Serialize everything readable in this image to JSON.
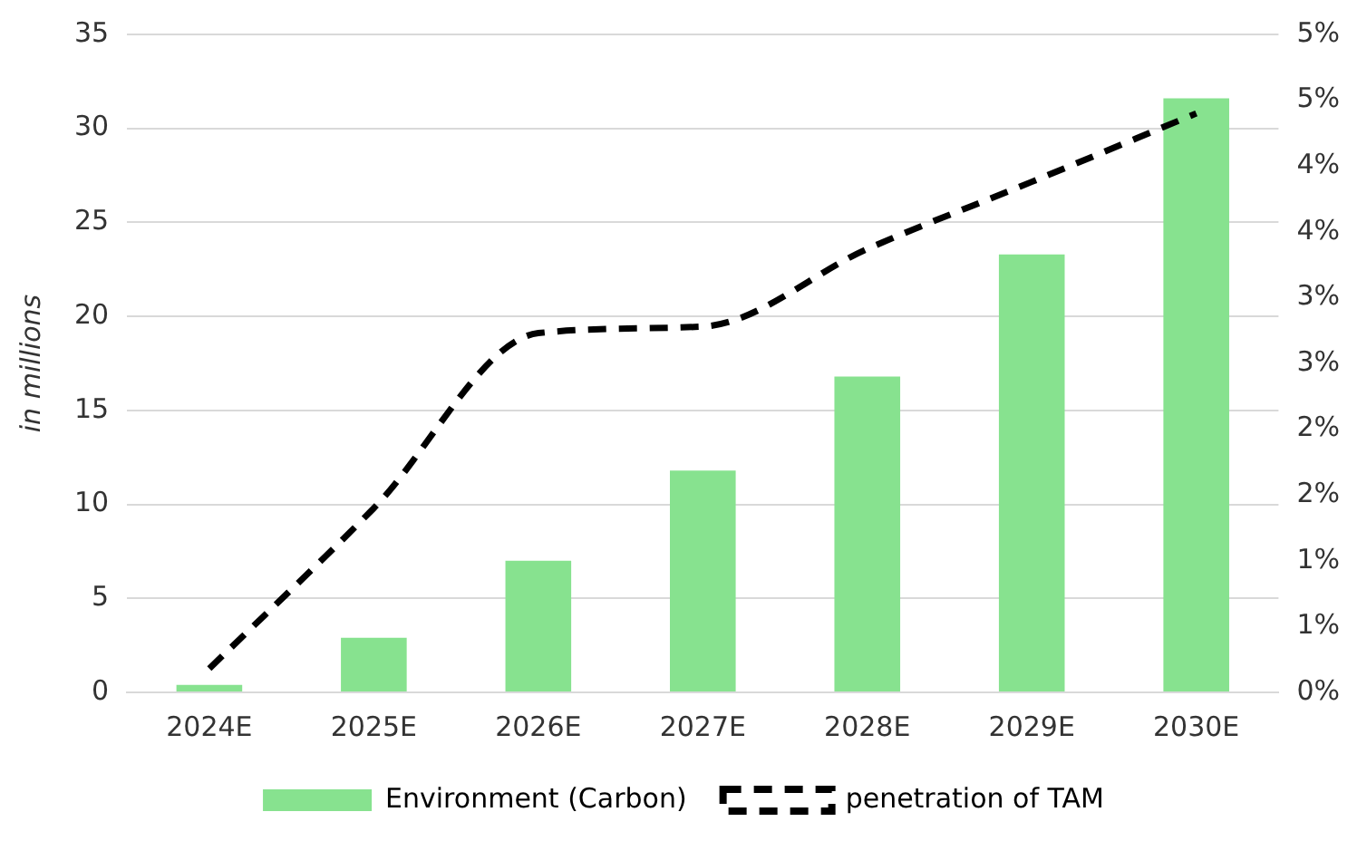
{
  "chart_data": {
    "type": "bar",
    "ylabel": "in millions",
    "categories": [
      "2024E",
      "2025E",
      "2026E",
      "2027E",
      "2028E",
      "2029E",
      "2030E"
    ],
    "series": [
      {
        "name": "Environment (Carbon)",
        "color": "#87e28f",
        "values": [
          0.4,
          2.9,
          7.0,
          11.8,
          16.8,
          23.3,
          31.6
        ]
      },
      {
        "name": "penetration of TAM",
        "type": "line",
        "axis": "y2",
        "color": "#000000",
        "line_style": "dashed",
        "marker": "none",
        "values": [
          0.18,
          1.4,
          2.73,
          2.78,
          3.37,
          3.88,
          4.4
        ]
      }
    ],
    "ylim": [
      0,
      35
    ],
    "yticks": [
      0,
      5,
      10,
      15,
      20,
      25,
      30,
      35
    ],
    "y2lim": [
      0,
      5
    ],
    "y2ticks": [
      {
        "value": 0,
        "label": "0%"
      },
      {
        "value": 0.5,
        "label": "1%"
      },
      {
        "value": 1,
        "label": "1%"
      },
      {
        "value": 1.5,
        "label": "2%"
      },
      {
        "value": 2,
        "label": "2%"
      },
      {
        "value": 2.5,
        "label": "3%"
      },
      {
        "value": 3,
        "label": "3%"
      },
      {
        "value": 3.5,
        "label": "4%"
      },
      {
        "value": 4,
        "label": "4%"
      },
      {
        "value": 4.5,
        "label": "5%"
      },
      {
        "value": 5,
        "label": "5%"
      }
    ],
    "grid": "y",
    "legend": "bottom"
  }
}
